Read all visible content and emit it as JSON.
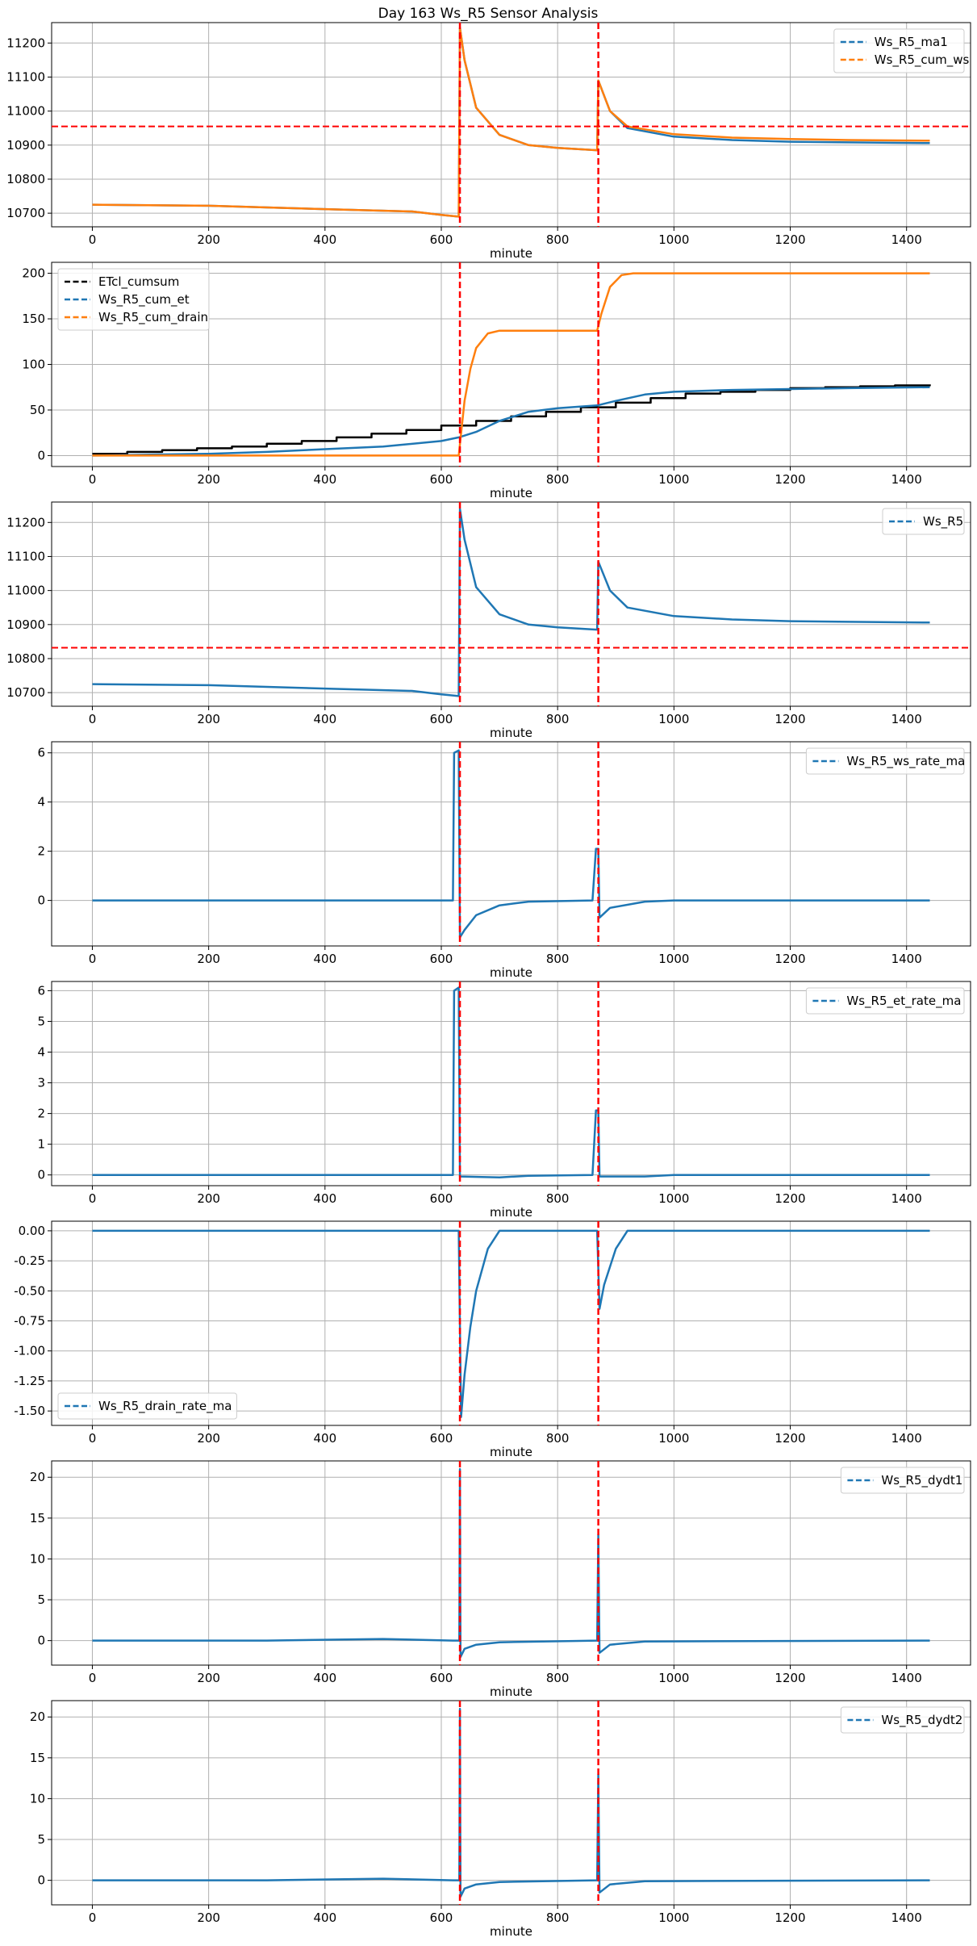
{
  "title": "Day 163 Ws_R5 Sensor Analysis",
  "colors": {
    "blue": "#1f77b4",
    "orange": "#ff7f0e",
    "black": "#000000",
    "red": "#ff0000",
    "grid": "#b0b0b0"
  },
  "chart_data": [
    {
      "type": "line",
      "xlabel": "minute",
      "xlim": [
        -70,
        1510
      ],
      "ylim": [
        10660,
        11260
      ],
      "xticks": [
        0,
        200,
        400,
        600,
        800,
        1000,
        1200,
        1400
      ],
      "yticks": [
        10700,
        10800,
        10900,
        11000,
        11100,
        11200
      ],
      "grid": true,
      "legend": "top-right",
      "vlines": [
        632,
        870
      ],
      "hlines": [
        10955
      ],
      "series": [
        {
          "name": "Ws_R5_ma1",
          "color": "#1f77b4",
          "points": [
            [
              0,
              10725
            ],
            [
              200,
              10722
            ],
            [
              400,
              10712
            ],
            [
              550,
              10705
            ],
            [
              600,
              10695
            ],
            [
              630,
              10690
            ],
            [
              632,
              11245
            ],
            [
              640,
              11150
            ],
            [
              660,
              11010
            ],
            [
              700,
              10930
            ],
            [
              750,
              10900
            ],
            [
              800,
              10892
            ],
            [
              868,
              10885
            ],
            [
              870,
              11090
            ],
            [
              890,
              11000
            ],
            [
              920,
              10950
            ],
            [
              1000,
              10925
            ],
            [
              1100,
              10915
            ],
            [
              1200,
              10910
            ],
            [
              1300,
              10908
            ],
            [
              1440,
              10906
            ]
          ]
        },
        {
          "name": "Ws_R5_cum_ws",
          "color": "#ff7f0e",
          "points": [
            [
              0,
              10725
            ],
            [
              200,
              10722
            ],
            [
              400,
              10712
            ],
            [
              550,
              10705
            ],
            [
              600,
              10695
            ],
            [
              630,
              10690
            ],
            [
              632,
              11245
            ],
            [
              640,
              11150
            ],
            [
              660,
              11010
            ],
            [
              700,
              10930
            ],
            [
              750,
              10900
            ],
            [
              800,
              10892
            ],
            [
              868,
              10885
            ],
            [
              870,
              11090
            ],
            [
              890,
              11000
            ],
            [
              920,
              10955
            ],
            [
              1000,
              10932
            ],
            [
              1100,
              10922
            ],
            [
              1200,
              10918
            ],
            [
              1300,
              10915
            ],
            [
              1440,
              10913
            ]
          ]
        }
      ]
    },
    {
      "type": "line",
      "xlabel": "minute",
      "xlim": [
        -70,
        1510
      ],
      "ylim": [
        -12,
        212
      ],
      "xticks": [
        0,
        200,
        400,
        600,
        800,
        1000,
        1200,
        1400
      ],
      "yticks": [
        0,
        50,
        100,
        150,
        200
      ],
      "grid": true,
      "legend": "top-left",
      "vlines": [
        632,
        870
      ],
      "hlines": [],
      "series": [
        {
          "name": "ETcl_cumsum",
          "color": "#000000",
          "step": true,
          "points": [
            [
              0,
              2
            ],
            [
              60,
              4
            ],
            [
              120,
              6
            ],
            [
              180,
              8
            ],
            [
              240,
              10
            ],
            [
              300,
              13
            ],
            [
              360,
              16
            ],
            [
              420,
              20
            ],
            [
              480,
              24
            ],
            [
              540,
              28
            ],
            [
              600,
              33
            ],
            [
              660,
              38
            ],
            [
              720,
              43
            ],
            [
              780,
              48
            ],
            [
              840,
              53
            ],
            [
              900,
              58
            ],
            [
              960,
              63
            ],
            [
              1020,
              68
            ],
            [
              1080,
              70
            ],
            [
              1140,
              72
            ],
            [
              1200,
              74
            ],
            [
              1260,
              75
            ],
            [
              1320,
              76
            ],
            [
              1380,
              77
            ],
            [
              1440,
              78
            ]
          ]
        },
        {
          "name": "Ws_R5_cum_et",
          "color": "#1f77b4",
          "points": [
            [
              0,
              0
            ],
            [
              100,
              1
            ],
            [
              200,
              2
            ],
            [
              300,
              4
            ],
            [
              400,
              7
            ],
            [
              500,
              10
            ],
            [
              600,
              16
            ],
            [
              630,
              20
            ],
            [
              660,
              26
            ],
            [
              700,
              38
            ],
            [
              750,
              48
            ],
            [
              800,
              52
            ],
            [
              868,
              55
            ],
            [
              900,
              60
            ],
            [
              950,
              67
            ],
            [
              1000,
              70
            ],
            [
              1100,
              72
            ],
            [
              1200,
              73
            ],
            [
              1300,
              74
            ],
            [
              1440,
              75
            ]
          ]
        },
        {
          "name": "Ws_R5_cum_drain",
          "color": "#ff7f0e",
          "points": [
            [
              0,
              0
            ],
            [
              630,
              0
            ],
            [
              640,
              60
            ],
            [
              650,
              95
            ],
            [
              660,
              118
            ],
            [
              680,
              134
            ],
            [
              700,
              137
            ],
            [
              868,
              137
            ],
            [
              875,
              155
            ],
            [
              890,
              185
            ],
            [
              910,
              198
            ],
            [
              930,
              200
            ],
            [
              1000,
              200
            ],
            [
              1440,
              200
            ]
          ]
        }
      ]
    },
    {
      "type": "line",
      "xlabel": "minute",
      "xlim": [
        -70,
        1510
      ],
      "ylim": [
        10660,
        11260
      ],
      "xticks": [
        0,
        200,
        400,
        600,
        800,
        1000,
        1200,
        1400
      ],
      "yticks": [
        10700,
        10800,
        10900,
        11000,
        11100,
        11200
      ],
      "grid": true,
      "legend": "top-right",
      "vlines": [
        632,
        870
      ],
      "hlines": [
        10832
      ],
      "series": [
        {
          "name": "Ws_R5",
          "color": "#1f77b4",
          "points": [
            [
              0,
              10725
            ],
            [
              200,
              10722
            ],
            [
              400,
              10712
            ],
            [
              550,
              10705
            ],
            [
              600,
              10695
            ],
            [
              630,
              10690
            ],
            [
              632,
              11240
            ],
            [
              640,
              11150
            ],
            [
              660,
              11010
            ],
            [
              700,
              10930
            ],
            [
              750,
              10900
            ],
            [
              800,
              10892
            ],
            [
              868,
              10885
            ],
            [
              870,
              11085
            ],
            [
              890,
              11000
            ],
            [
              920,
              10950
            ],
            [
              1000,
              10925
            ],
            [
              1100,
              10915
            ],
            [
              1200,
              10910
            ],
            [
              1300,
              10908
            ],
            [
              1440,
              10906
            ]
          ]
        }
      ]
    },
    {
      "type": "line",
      "xlabel": "minute",
      "xlim": [
        -70,
        1510
      ],
      "ylim": [
        -1.85,
        6.45
      ],
      "xticks": [
        0,
        200,
        400,
        600,
        800,
        1000,
        1200,
        1400
      ],
      "yticks": [
        0,
        2,
        4,
        6
      ],
      "grid": true,
      "legend": "top-right",
      "vlines": [
        632,
        870
      ],
      "hlines": [],
      "series": [
        {
          "name": "Ws_R5_ws_rate_ma",
          "color": "#1f77b4",
          "points": [
            [
              0,
              0
            ],
            [
              600,
              0
            ],
            [
              620,
              0
            ],
            [
              622,
              6
            ],
            [
              630,
              6.1
            ],
            [
              632,
              -1.5
            ],
            [
              640,
              -1.2
            ],
            [
              660,
              -0.6
            ],
            [
              700,
              -0.2
            ],
            [
              750,
              -0.05
            ],
            [
              860,
              0
            ],
            [
              866,
              2.1
            ],
            [
              870,
              2.1
            ],
            [
              872,
              -0.7
            ],
            [
              890,
              -0.3
            ],
            [
              950,
              -0.05
            ],
            [
              1000,
              0
            ],
            [
              1440,
              0
            ]
          ]
        }
      ]
    },
    {
      "type": "line",
      "xlabel": "minute",
      "xlim": [
        -70,
        1510
      ],
      "ylim": [
        -0.35,
        6.3
      ],
      "xticks": [
        0,
        200,
        400,
        600,
        800,
        1000,
        1200,
        1400
      ],
      "yticks": [
        0,
        1,
        2,
        3,
        4,
        5,
        6
      ],
      "grid": true,
      "legend": "top-right",
      "vlines": [
        632,
        870
      ],
      "hlines": [],
      "series": [
        {
          "name": "Ws_R5_et_rate_ma",
          "color": "#1f77b4",
          "points": [
            [
              0,
              0
            ],
            [
              600,
              0
            ],
            [
              620,
              0
            ],
            [
              622,
              6
            ],
            [
              630,
              6.1
            ],
            [
              632,
              -0.05
            ],
            [
              700,
              -0.08
            ],
            [
              750,
              -0.03
            ],
            [
              860,
              0
            ],
            [
              866,
              2.1
            ],
            [
              870,
              2.1
            ],
            [
              872,
              -0.05
            ],
            [
              950,
              -0.05
            ],
            [
              1000,
              0
            ],
            [
              1440,
              0
            ]
          ]
        }
      ]
    },
    {
      "type": "line",
      "xlabel": "minute",
      "xlim": [
        -70,
        1510
      ],
      "ylim": [
        -1.62,
        0.08
      ],
      "xticks": [
        0,
        200,
        400,
        600,
        800,
        1000,
        1200,
        1400
      ],
      "yticks": [
        0.0,
        -0.25,
        -0.5,
        -0.75,
        -1.0,
        -1.25,
        -1.5
      ],
      "yticklabels": [
        "0.00",
        "-0.25",
        "-0.50",
        "-0.75",
        "-1.00",
        "-1.25",
        "-1.50"
      ],
      "grid": true,
      "legend": "bottom-left",
      "vlines": [
        632,
        870
      ],
      "hlines": [],
      "series": [
        {
          "name": "Ws_R5_drain_rate_ma",
          "color": "#1f77b4",
          "points": [
            [
              0,
              0
            ],
            [
              630,
              0
            ],
            [
              634,
              -1.55
            ],
            [
              640,
              -1.2
            ],
            [
              650,
              -0.8
            ],
            [
              660,
              -0.5
            ],
            [
              680,
              -0.15
            ],
            [
              700,
              0
            ],
            [
              868,
              0
            ],
            [
              872,
              -0.65
            ],
            [
              880,
              -0.45
            ],
            [
              900,
              -0.15
            ],
            [
              920,
              0
            ],
            [
              1440,
              0
            ]
          ]
        }
      ]
    },
    {
      "type": "line",
      "xlabel": "minute",
      "xlim": [
        -70,
        1510
      ],
      "ylim": [
        -3,
        22
      ],
      "xticks": [
        0,
        200,
        400,
        600,
        800,
        1000,
        1200,
        1400
      ],
      "yticks": [
        0,
        5,
        10,
        15,
        20
      ],
      "grid": true,
      "legend": "top-right",
      "vlines": [
        632,
        870
      ],
      "hlines": [],
      "series": [
        {
          "name": "Ws_R5_dydt1",
          "color": "#1f77b4",
          "points": [
            [
              0,
              0
            ],
            [
              300,
              0
            ],
            [
              500,
              0.2
            ],
            [
              620,
              0
            ],
            [
              631,
              0
            ],
            [
              632,
              21
            ],
            [
              633,
              -2
            ],
            [
              640,
              -1
            ],
            [
              660,
              -0.5
            ],
            [
              700,
              -0.2
            ],
            [
              868,
              0
            ],
            [
              870,
              13
            ],
            [
              872,
              -1.5
            ],
            [
              890,
              -0.5
            ],
            [
              950,
              -0.1
            ],
            [
              1440,
              0
            ]
          ]
        }
      ]
    },
    {
      "type": "line",
      "xlabel": "minute",
      "xlim": [
        -70,
        1510
      ],
      "ylim": [
        -3,
        22
      ],
      "xticks": [
        0,
        200,
        400,
        600,
        800,
        1000,
        1200,
        1400
      ],
      "yticks": [
        0,
        5,
        10,
        15,
        20
      ],
      "grid": true,
      "legend": "top-right",
      "vlines": [
        632,
        870
      ],
      "hlines": [],
      "series": [
        {
          "name": "Ws_R5_dydt2",
          "color": "#1f77b4",
          "points": [
            [
              0,
              0
            ],
            [
              300,
              0
            ],
            [
              500,
              0.2
            ],
            [
              620,
              0
            ],
            [
              631,
              0
            ],
            [
              632,
              21
            ],
            [
              633,
              -2
            ],
            [
              640,
              -1
            ],
            [
              660,
              -0.5
            ],
            [
              700,
              -0.2
            ],
            [
              868,
              0
            ],
            [
              870,
              13
            ],
            [
              872,
              -1.5
            ],
            [
              890,
              -0.5
            ],
            [
              950,
              -0.1
            ],
            [
              1440,
              0
            ]
          ]
        }
      ]
    }
  ]
}
